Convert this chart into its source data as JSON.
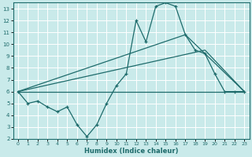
{
  "xlabel": "Humidex (Indice chaleur)",
  "xlim": [
    -0.5,
    23.5
  ],
  "ylim": [
    2,
    13.5
  ],
  "yticks": [
    2,
    3,
    4,
    5,
    6,
    7,
    8,
    9,
    10,
    11,
    12,
    13
  ],
  "xticks": [
    0,
    1,
    2,
    3,
    4,
    5,
    6,
    7,
    8,
    9,
    10,
    11,
    12,
    13,
    14,
    15,
    16,
    17,
    18,
    19,
    20,
    21,
    22,
    23
  ],
  "background_color": "#c9eaea",
  "line_color": "#1e6b6b",
  "grid_color": "#b0d8d8",
  "line_main": {
    "x": [
      0,
      1,
      2,
      3,
      4,
      5,
      6,
      7,
      8,
      9,
      10,
      11,
      12,
      13,
      14,
      15,
      16,
      17,
      18,
      19,
      20,
      21,
      22,
      23
    ],
    "y": [
      6.0,
      5.0,
      5.2,
      4.7,
      4.3,
      4.7,
      3.2,
      2.2,
      3.2,
      5.0,
      6.5,
      7.5,
      12.0,
      10.2,
      13.2,
      13.5,
      13.2,
      10.8,
      9.5,
      9.2,
      7.5,
      6.0,
      6.0,
      6.0
    ]
  },
  "line_flat": {
    "x": [
      0,
      23
    ],
    "y": [
      6.0,
      6.0
    ]
  },
  "line_tri1": {
    "x": [
      0,
      19,
      23
    ],
    "y": [
      6.0,
      9.5,
      6.0
    ]
  },
  "line_tri2": {
    "x": [
      0,
      17,
      23
    ],
    "y": [
      6.0,
      10.8,
      6.0
    ]
  }
}
